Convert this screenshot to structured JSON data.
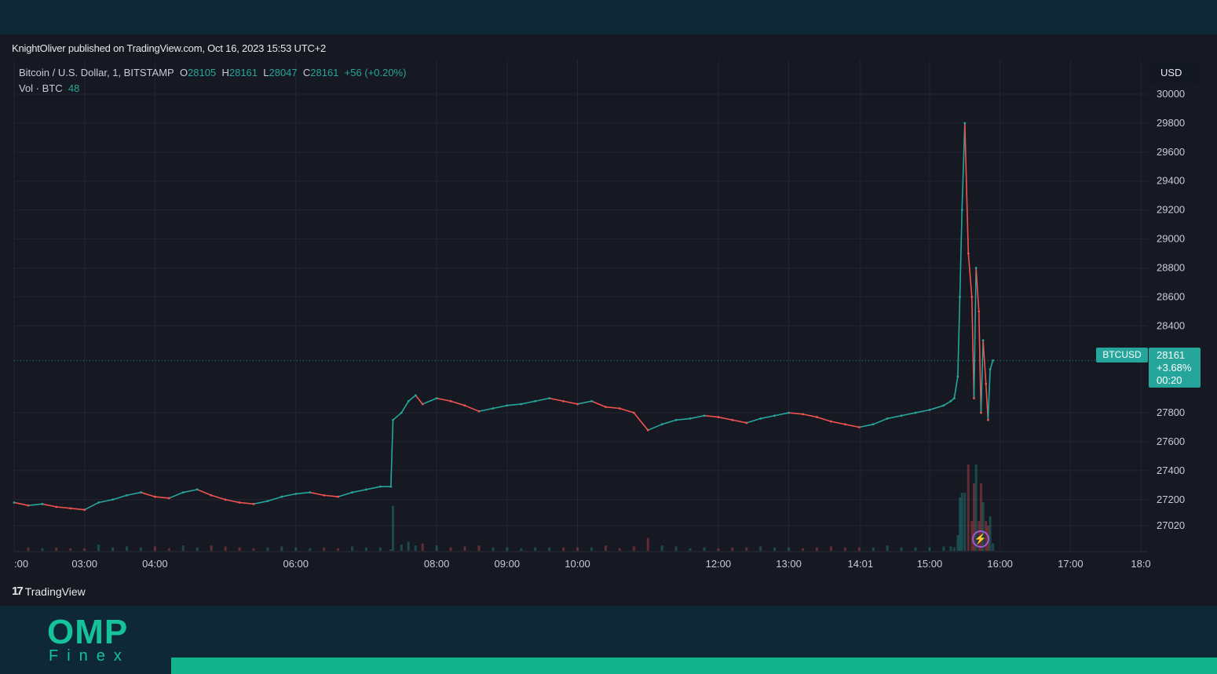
{
  "header": {
    "published": "KnightOliver published on TradingView.com, Oct 16, 2023 15:53 UTC+2"
  },
  "legend": {
    "symbol": "Bitcoin / U.S. Dollar, 1, BITSTAMP",
    "o_label": "O",
    "o": "28105",
    "h_label": "H",
    "h": "28161",
    "l_label": "L",
    "l": "28047",
    "c_label": "C",
    "c": "28161",
    "change": "+56 (+0.20%)",
    "vol_label": "Vol · BTC",
    "vol": "48"
  },
  "axis": {
    "currency": "USD"
  },
  "price_tag": {
    "symbol": "BTCUSD",
    "price": "28161",
    "change_pct": "+3.68%",
    "countdown": "00:20"
  },
  "footer": {
    "tv_logo_mark": "17",
    "tv_logo_text": "TradingView"
  },
  "brand": {
    "name": "OMP",
    "sub": "Finex"
  },
  "colors": {
    "up": "#26a69a",
    "down": "#ef5350",
    "background": "#161822",
    "grid": "#232632",
    "brand": "#16c29a"
  },
  "icons": {
    "event": "lightning-icon"
  },
  "chart_data": {
    "type": "line",
    "ylabel": "USD",
    "ylim": [
      26920,
      30050
    ],
    "y_ticks": [
      30000,
      29800,
      29600,
      29400,
      29200,
      29000,
      28800,
      28600,
      28400,
      27800,
      27600,
      27400,
      27200,
      27020
    ],
    "x_ticks": [
      {
        "label": ":00",
        "t": 2.0
      },
      {
        "label": "03:00",
        "t": 3.0
      },
      {
        "label": "04:00",
        "t": 4.0
      },
      {
        "label": "06:00",
        "t": 6.0
      },
      {
        "label": "08:00",
        "t": 8.0
      },
      {
        "label": "09:00",
        "t": 9.0
      },
      {
        "label": "10:00",
        "t": 10.0
      },
      {
        "label": "12:00",
        "t": 12.0
      },
      {
        "label": "13:00",
        "t": 13.0
      },
      {
        "label": "14:01",
        "t": 14.017
      },
      {
        "label": "15:00",
        "t": 15.0
      },
      {
        "label": "16:00",
        "t": 16.0
      },
      {
        "label": "17:00",
        "t": 17.0
      },
      {
        "label": "18:0",
        "t": 18.0
      }
    ],
    "last_price": 28161,
    "series": [
      {
        "x": [
          2.0,
          2.2,
          2.4,
          2.6,
          2.8,
          3.0,
          3.2,
          3.4,
          3.6,
          3.8,
          4.0,
          4.2,
          4.4,
          4.6,
          4.8,
          5.0,
          5.2,
          5.4,
          5.6,
          5.8,
          6.0,
          6.2,
          6.4,
          6.6,
          6.8,
          7.0,
          7.2,
          7.35,
          7.38,
          7.5,
          7.6,
          7.7,
          7.8,
          8.0,
          8.2,
          8.4,
          8.6,
          8.8,
          9.0,
          9.2,
          9.4,
          9.6,
          9.8,
          10.0,
          10.2,
          10.4,
          10.6,
          10.8,
          11.0,
          11.2,
          11.4,
          11.6,
          11.8,
          12.0,
          12.2,
          12.4,
          12.6,
          12.8,
          13.0,
          13.2,
          13.4,
          13.6,
          13.8,
          14.0,
          14.2,
          14.4,
          14.6,
          14.8,
          15.0,
          15.2,
          15.3,
          15.35,
          15.4,
          15.43,
          15.46,
          15.5,
          15.55,
          15.6,
          15.63,
          15.66,
          15.7,
          15.73,
          15.76,
          15.8,
          15.83,
          15.86,
          15.9
        ],
        "y": [
          27180,
          27160,
          27170,
          27150,
          27140,
          27130,
          27180,
          27200,
          27230,
          27250,
          27220,
          27210,
          27250,
          27270,
          27230,
          27200,
          27180,
          27170,
          27190,
          27220,
          27240,
          27250,
          27230,
          27220,
          27250,
          27270,
          27290,
          27290,
          27750,
          27800,
          27880,
          27920,
          27860,
          27900,
          27880,
          27850,
          27810,
          27830,
          27850,
          27860,
          27880,
          27900,
          27880,
          27860,
          27880,
          27840,
          27830,
          27800,
          27680,
          27720,
          27750,
          27760,
          27780,
          27770,
          27750,
          27730,
          27760,
          27780,
          27800,
          27790,
          27770,
          27740,
          27720,
          27700,
          27720,
          27760,
          27780,
          27800,
          27820,
          27850,
          27880,
          27900,
          28050,
          28600,
          29200,
          29800,
          28900,
          28600,
          27900,
          28800,
          28500,
          27800,
          28300,
          28000,
          27750,
          28100,
          28161
        ]
      }
    ],
    "annotations": [
      "BTCUSD 28161 +3.68% 00:20"
    ]
  }
}
